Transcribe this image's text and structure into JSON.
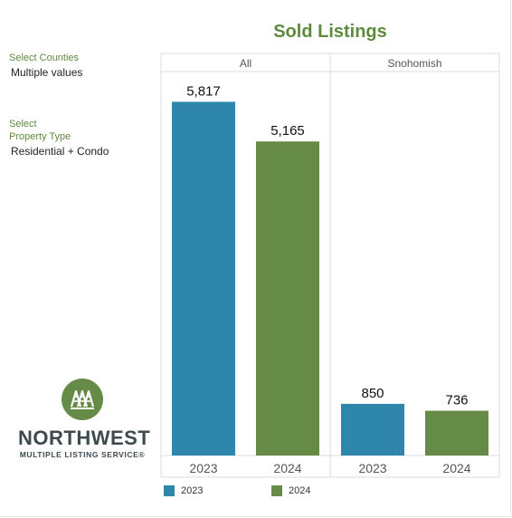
{
  "title": "Sold Listings",
  "filters": {
    "counties": {
      "label": "Select Counties",
      "value": "Multiple values"
    },
    "property_type": {
      "label_line1": "Select",
      "label_line2": "Property Type",
      "value": "Residential + Condo"
    }
  },
  "logo": {
    "name": "NORTHWEST",
    "subtitle": "MULTIPLE LISTING SERVICE®",
    "icon": "trees-logo-icon"
  },
  "colors": {
    "y2023": "#2e86ab",
    "y2024": "#668b46",
    "title": "#5e8a3e"
  },
  "legend": [
    {
      "label": "2023",
      "color": "#2e86ab"
    },
    {
      "label": "2024",
      "color": "#668b46"
    }
  ],
  "chart_data": {
    "type": "bar",
    "title": "Sold Listings",
    "panels": [
      "All",
      "Snohomish"
    ],
    "categories": [
      "2023",
      "2024"
    ],
    "series": [
      {
        "panel": "All",
        "values": [
          5817,
          5165
        ],
        "labels": [
          "5,817",
          "5,165"
        ]
      },
      {
        "panel": "Snohomish",
        "values": [
          850,
          736
        ],
        "labels": [
          "850",
          "736"
        ]
      }
    ],
    "ylim": [
      0,
      6300
    ],
    "grid": false,
    "legend_position": "bottom"
  }
}
